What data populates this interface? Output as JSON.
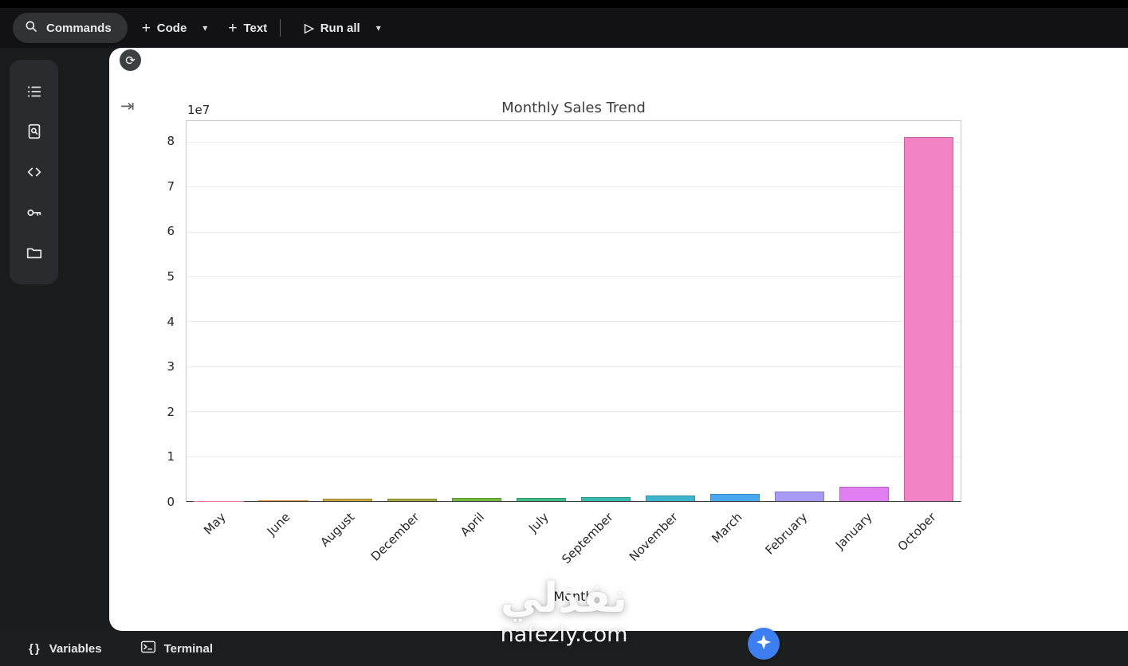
{
  "toolbar": {
    "commands": "Commands",
    "code": "Code",
    "text": "Text",
    "run_all": "Run all"
  },
  "icons": {
    "caret": "▾",
    "plus": "+",
    "play": "▷",
    "braces": "{}",
    "refresh": "⟳",
    "skip": "⇥"
  },
  "bottom_bar": {
    "variables": "Variables",
    "terminal": "Terminal"
  },
  "watermark": {
    "title": "نفذلي",
    "domain": "nafezly.com"
  },
  "chart_data": {
    "type": "bar",
    "title": "Monthly Sales Trend",
    "xlabel": "Month",
    "ylabel": "",
    "offset_text": "1e7",
    "categories": [
      "May",
      "June",
      "August",
      "December",
      "April",
      "July",
      "September",
      "November",
      "March",
      "February",
      "January",
      "October"
    ],
    "values": [
      80000,
      150000,
      450000,
      500000,
      650000,
      800000,
      900000,
      1200000,
      1600000,
      2100000,
      3200000,
      81000000
    ],
    "bar_colors": [
      "#f77189",
      "#dc8932",
      "#c9a83c",
      "#a4aa3d",
      "#77b843",
      "#3fbd88",
      "#39bcae",
      "#3eb5cd",
      "#4aa9ee",
      "#a79bf5",
      "#e17ef2",
      "#f283c5"
    ],
    "ylim": [
      0,
      84600000
    ],
    "ytick_values": [
      0,
      10000000,
      20000000,
      30000000,
      40000000,
      50000000,
      60000000,
      70000000,
      80000000
    ],
    "ytick_labels": [
      "0",
      "1",
      "2",
      "3",
      "4",
      "5",
      "6",
      "7",
      "8"
    ],
    "grid": true,
    "legend": false,
    "x_tick_rotation": 45
  }
}
